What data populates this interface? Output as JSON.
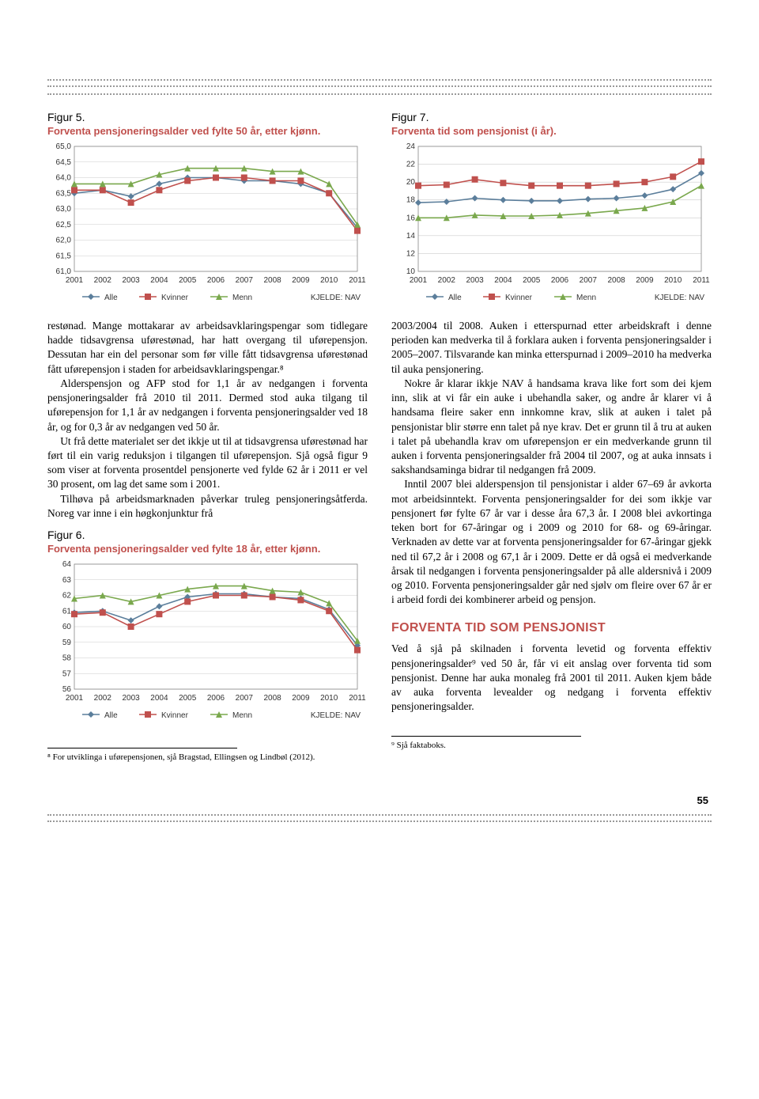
{
  "page_number": "55",
  "source_label": "KJELDE: NAV",
  "legend_labels": {
    "alle": "Alle",
    "kvinner": "Kvinner",
    "menn": "Menn"
  },
  "colors": {
    "alle": "#5b7e9b",
    "kvinner": "#c0504d",
    "menn": "#7aa84d",
    "grid": "#cccccc",
    "axis": "#888888",
    "dots": "#999999"
  },
  "fig5": {
    "label": "Figur 5.",
    "title": "Forventa pensjoneringsalder ved fylte 50 år, etter kjønn.",
    "years": [
      "2001",
      "2002",
      "2003",
      "2004",
      "2005",
      "2006",
      "2007",
      "2008",
      "2009",
      "2010",
      "2011"
    ],
    "ylim": [
      61.0,
      65.0
    ],
    "yticks": [
      61.0,
      61.5,
      62.0,
      62.5,
      63.0,
      63.5,
      64.0,
      64.5,
      65.0
    ],
    "ytick_labels": [
      "61,0",
      "61,5",
      "62,0",
      "62,5",
      "63,0",
      "63,5",
      "64,0",
      "64,5",
      "65,0"
    ],
    "series": {
      "alle": [
        63.5,
        63.6,
        63.4,
        63.8,
        64.0,
        64.0,
        63.9,
        63.9,
        63.8,
        63.5,
        62.4
      ],
      "kvinner": [
        63.6,
        63.6,
        63.2,
        63.6,
        63.9,
        64.0,
        64.0,
        63.9,
        63.9,
        63.5,
        62.3
      ],
      "menn": [
        63.8,
        63.8,
        63.8,
        64.1,
        64.3,
        64.3,
        64.3,
        64.2,
        64.2,
        63.8,
        62.5
      ]
    }
  },
  "fig6": {
    "label": "Figur 6.",
    "title": "Forventa pensjoneringsalder ved fylte 18 år, etter kjønn.",
    "years": [
      "2001",
      "2002",
      "2003",
      "2004",
      "2005",
      "2006",
      "2007",
      "2008",
      "2009",
      "2010",
      "2011"
    ],
    "ylim": [
      56,
      64
    ],
    "yticks": [
      56,
      57,
      58,
      59,
      60,
      61,
      62,
      63,
      64
    ],
    "ytick_labels": [
      "56",
      "57",
      "58",
      "59",
      "60",
      "61",
      "62",
      "63",
      "64"
    ],
    "series": {
      "alle": [
        60.9,
        61.0,
        60.4,
        61.3,
        61.9,
        62.1,
        62.1,
        61.9,
        61.8,
        61.1,
        58.8
      ],
      "kvinner": [
        60.8,
        60.9,
        60.0,
        60.8,
        61.6,
        62.0,
        62.0,
        61.9,
        61.7,
        61.0,
        58.5
      ],
      "menn": [
        61.8,
        62.0,
        61.6,
        62.0,
        62.4,
        62.6,
        62.6,
        62.3,
        62.2,
        61.5,
        59.1
      ]
    }
  },
  "fig7": {
    "label": "Figur 7.",
    "title": "Forventa tid som pensjonist (i år).",
    "years": [
      "2001",
      "2002",
      "2003",
      "2004",
      "2005",
      "2006",
      "2007",
      "2008",
      "2009",
      "2010",
      "2011"
    ],
    "ylim": [
      10,
      24
    ],
    "yticks": [
      10,
      12,
      14,
      16,
      18,
      20,
      22,
      24
    ],
    "ytick_labels": [
      "10",
      "12",
      "14",
      "16",
      "18",
      "20",
      "22",
      "24"
    ],
    "series": {
      "alle": [
        17.7,
        17.8,
        18.2,
        18.0,
        17.9,
        17.9,
        18.1,
        18.2,
        18.5,
        19.2,
        21.0
      ],
      "kvinner": [
        19.6,
        19.7,
        20.3,
        19.9,
        19.6,
        19.6,
        19.6,
        19.8,
        20.0,
        20.6,
        22.3
      ],
      "menn": [
        16.0,
        16.0,
        16.3,
        16.2,
        16.2,
        16.3,
        16.5,
        16.8,
        17.1,
        17.8,
        19.6
      ]
    }
  },
  "text_left_1": "restønad. Mange mottakarar av arbeidsavklaringspengar som tidlegare hadde tidsavgrensa uførestønad, har hatt overgang til uførepensjon. Dessutan har ein del personar som før ville fått tidsavgrensa uførestønad fått uførepensjon i staden for arbeidsavklaringspengar.⁸",
  "text_left_2": "Alderspensjon og AFP stod for 1,1 år av nedgangen i forventa pensjoneringsalder frå 2010 til 2011. Dermed stod auka tilgang til uførepensjon for 1,1 år av nedgangen i forventa pensjoneringsalder ved 18 år, og for 0,3 år av nedgangen ved 50 år.",
  "text_left_3": "Ut frå dette materialet ser det ikkje ut til at tidsavgrensa uførestønad har ført til ein varig reduksjon i tilgangen til uførepensjon. Sjå også figur 9 som viser at forventa prosentdel pensjonerte ved fylde 62 år i 2011 er vel 30 prosent, om lag det same som i 2001.",
  "text_left_4": "Tilhøva på arbeidsmarknaden påverkar truleg pensjoneringsåtferda. Noreg var inne i ein høgkonjunktur frå",
  "text_right_1": "2003/2004 til 2008. Auken i etterspurnad etter arbeidskraft i denne perioden kan medverka til å forklara auken i forventa pensjoneringsalder i 2005–2007. Tilsvarande kan minka etterspurnad i 2009–2010 ha medverka til auka pensjonering.",
  "text_right_2": "Nokre år klarar ikkje NAV å handsama krava like fort som dei kjem inn, slik at vi får ein auke i ubehandla saker, og andre år klarer vi å handsama fleire saker enn innkomne krav, slik at auken i talet på pensjonistar blir større enn talet på nye krav. Det er grunn til å tru at auken i talet på ubehandla krav om uførepensjon er ein medverkande grunn til auken i forventa pensjoneringsalder frå 2004 til 2007, og at auka innsats i sakshandsaminga bidrar til nedgangen frå 2009.",
  "text_right_3": "Inntil 2007 blei alderspensjon til pensjonistar i alder 67–69 år avkorta mot arbeidsinntekt. Forventa pensjoneringsalder for dei som ikkje var pensjonert før fylte 67 år var i desse åra 67,3 år. I 2008 blei avkortinga teken bort for 67-åringar og i 2009 og 2010 for 68- og 69-åringar. Verknaden av dette var at forventa pensjoneringsalder for 67-åringar gjekk ned til 67,2 år i 2008 og 67,1 år i 2009. Dette er då også ei medverkande årsak til nedgangen i forventa pensjoneringsalder på alle aldersnivå i 2009 og 2010. Forventa pensjoneringsalder går ned sjølv om fleire over 67 år er i arbeid fordi dei kombinerer arbeid og pensjon.",
  "section_head": "FORVENTA TID SOM PENSJONIST",
  "text_right_4": "Ved å sjå på skilnaden i forventa levetid og forventa effektiv pensjoneringsalder⁹ ved 50 år, får vi eit anslag over forventa tid som pensjonist. Denne har auka monaleg frå 2001 til 2011. Auken kjem både av auka forventa levealder og nedgang i forventa effektiv pensjoneringsalder.",
  "footnote_left": "⁸ For utviklinga i uførepensjonen, sjå Bragstad, Ellingsen og Lindbøl (2012).",
  "footnote_right": "⁹ Sjå faktaboks."
}
